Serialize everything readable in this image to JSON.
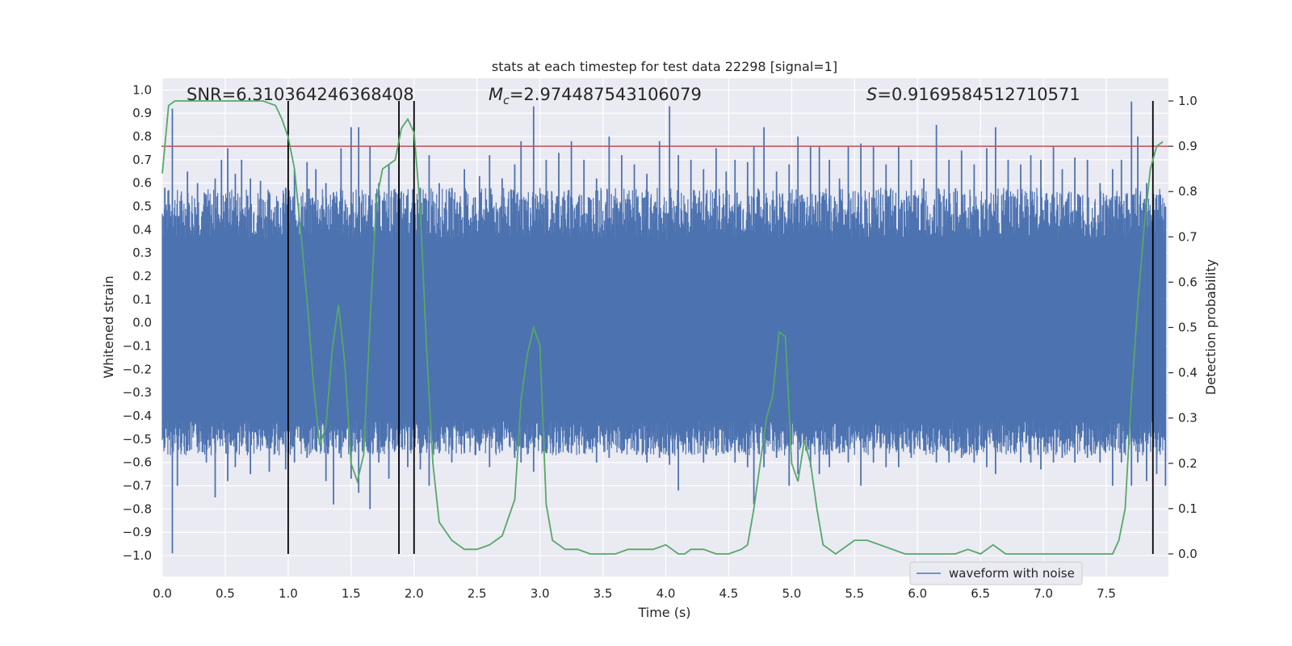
{
  "chart_data": {
    "type": "line",
    "title": "stats at each timestep for test data 22298 [signal=1]",
    "xlabel": "Time (s)",
    "ylabel": "Whitened strain",
    "ylabel_right": "Detection probability",
    "xlim": [
      0.0,
      8.0
    ],
    "ylim": [
      -1.09,
      1.05
    ],
    "ylim_right": [
      -0.05,
      1.05
    ],
    "xticks": [
      "0.0",
      "0.5",
      "1.0",
      "1.5",
      "2.0",
      "2.5",
      "3.0",
      "3.5",
      "4.0",
      "4.5",
      "5.0",
      "5.5",
      "6.0",
      "6.5",
      "7.0",
      "7.5"
    ],
    "yticks_left": [
      "1.0",
      "0.9",
      "0.8",
      "0.7",
      "0.6",
      "0.5",
      "0.4",
      "0.3",
      "0.2",
      "0.1",
      "0.0",
      "−0.1",
      "−0.2",
      "−0.3",
      "−0.4",
      "−0.5",
      "−0.6",
      "−0.7",
      "−0.8",
      "−0.9",
      "−1.0"
    ],
    "yticks_right": [
      "1.0",
      "0.9",
      "0.8",
      "0.7",
      "0.6",
      "0.5",
      "0.4",
      "0.3",
      "0.2",
      "0.1",
      "0.0"
    ],
    "annotations": {
      "snr": "SNR=6.310364246368408",
      "mc": "=2.974487543106079",
      "mc_symbol": "M",
      "mc_sub": "c",
      "s": "=0.9169584512710571",
      "s_symbol": "S"
    },
    "legend": {
      "label": "waveform with noise",
      "location": "lower-right"
    },
    "threshold_line": {
      "y_right": 0.9,
      "color": "#c44e52"
    },
    "vertical_lines_x": [
      1.0,
      1.88,
      2.0,
      7.87
    ],
    "colors": {
      "waveform": "#4c72b0",
      "probability": "#55a868",
      "threshold": "#c44e52",
      "vlines": "#000000",
      "background": "#eaeaf2",
      "grid": "#ffffff"
    },
    "waveform_series": {
      "name": "waveform with noise",
      "spikes": [
        [
          0.02,
          0.58,
          -0.52
        ],
        [
          0.08,
          0.92,
          -0.99
        ],
        [
          0.12,
          0.4,
          -0.7
        ],
        [
          0.2,
          0.65,
          -0.55
        ],
        [
          0.28,
          0.6,
          -0.48
        ],
        [
          0.35,
          0.55,
          -0.6
        ],
        [
          0.42,
          0.62,
          -0.75
        ],
        [
          0.47,
          0.7,
          -0.5
        ],
        [
          0.52,
          0.75,
          -0.68
        ],
        [
          0.58,
          0.64,
          -0.62
        ],
        [
          0.63,
          0.7,
          -0.53
        ],
        [
          0.7,
          0.62,
          -0.65
        ],
        [
          0.78,
          0.61,
          -0.48
        ],
        [
          0.85,
          0.55,
          -0.64
        ],
        [
          0.92,
          0.52,
          -0.5
        ],
        [
          0.98,
          0.58,
          -0.63
        ],
        [
          1.05,
          0.66,
          -0.6
        ],
        [
          1.15,
          0.69,
          -0.58
        ],
        [
          1.22,
          0.66,
          -0.55
        ],
        [
          1.3,
          0.6,
          -0.68
        ],
        [
          1.36,
          0.56,
          -0.78
        ],
        [
          1.42,
          0.75,
          -0.58
        ],
        [
          1.5,
          0.84,
          -0.67
        ],
        [
          1.56,
          0.84,
          -0.73
        ],
        [
          1.65,
          0.76,
          -0.8
        ],
        [
          1.72,
          0.6,
          -0.6
        ],
        [
          1.8,
          0.68,
          -0.67
        ],
        [
          1.88,
          0.68,
          -0.69
        ],
        [
          1.95,
          0.55,
          -0.62
        ],
        [
          2.05,
          0.58,
          -0.63
        ],
        [
          2.12,
          0.72,
          -0.7
        ],
        [
          2.2,
          0.6,
          -0.56
        ],
        [
          2.3,
          0.58,
          -0.6
        ],
        [
          2.4,
          0.66,
          -0.56
        ],
        [
          2.52,
          0.63,
          -0.55
        ],
        [
          2.6,
          0.72,
          -0.62
        ],
        [
          2.7,
          0.62,
          -0.55
        ],
        [
          2.8,
          0.68,
          -0.58
        ],
        [
          2.85,
          0.78,
          -0.6
        ],
        [
          2.95,
          0.93,
          -0.64
        ],
        [
          3.05,
          0.7,
          -0.56
        ],
        [
          3.15,
          0.73,
          -0.56
        ],
        [
          3.25,
          0.78,
          -0.56
        ],
        [
          3.35,
          0.7,
          -0.56
        ],
        [
          3.45,
          0.62,
          -0.6
        ],
        [
          3.55,
          0.8,
          -0.58
        ],
        [
          3.65,
          0.72,
          -0.56
        ],
        [
          3.75,
          0.68,
          -0.55
        ],
        [
          3.85,
          0.64,
          -0.6
        ],
        [
          3.95,
          0.78,
          -0.58
        ],
        [
          4.03,
          0.93,
          -0.61
        ],
        [
          4.1,
          0.72,
          -0.72
        ],
        [
          4.2,
          0.7,
          -0.56
        ],
        [
          4.3,
          0.66,
          -0.6
        ],
        [
          4.4,
          0.75,
          -0.57
        ],
        [
          4.48,
          0.65,
          -0.55
        ],
        [
          4.55,
          0.7,
          -0.6
        ],
        [
          4.65,
          0.69,
          -0.62
        ],
        [
          4.7,
          0.76,
          -0.78
        ],
        [
          4.78,
          0.84,
          -0.62
        ],
        [
          4.88,
          0.65,
          -0.58
        ],
        [
          4.98,
          0.68,
          -0.7
        ],
        [
          5.05,
          0.8,
          -0.65
        ],
        [
          5.15,
          0.76,
          -0.62
        ],
        [
          5.22,
          0.76,
          -0.65
        ],
        [
          5.3,
          0.7,
          -0.62
        ],
        [
          5.38,
          0.62,
          -0.56
        ],
        [
          5.45,
          0.76,
          -0.6
        ],
        [
          5.55,
          0.77,
          -0.7
        ],
        [
          5.65,
          0.76,
          -0.6
        ],
        [
          5.75,
          0.68,
          -0.62
        ],
        [
          5.85,
          0.76,
          -0.62
        ],
        [
          5.95,
          0.7,
          -0.58
        ],
        [
          6.05,
          0.62,
          -0.55
        ],
        [
          6.15,
          0.85,
          -0.6
        ],
        [
          6.25,
          0.7,
          -0.6
        ],
        [
          6.35,
          0.74,
          -0.58
        ],
        [
          6.45,
          0.68,
          -0.6
        ],
        [
          6.55,
          0.75,
          -0.62
        ],
        [
          6.62,
          0.84,
          -0.65
        ],
        [
          6.72,
          0.7,
          -0.55
        ],
        [
          6.82,
          0.68,
          -0.6
        ],
        [
          6.9,
          0.72,
          -0.6
        ],
        [
          6.98,
          0.7,
          -0.63
        ],
        [
          7.08,
          0.76,
          -0.6
        ],
        [
          7.15,
          0.66,
          -0.58
        ],
        [
          7.25,
          0.71,
          -0.6
        ],
        [
          7.35,
          0.7,
          -0.58
        ],
        [
          7.45,
          0.6,
          -0.6
        ],
        [
          7.55,
          0.66,
          -0.7
        ],
        [
          7.62,
          0.7,
          -0.6
        ],
        [
          7.7,
          0.95,
          -0.7
        ],
        [
          7.75,
          0.8,
          -0.6
        ],
        [
          7.82,
          0.6,
          -0.68
        ],
        [
          7.9,
          0.55,
          -0.65
        ],
        [
          7.97,
          0.5,
          -0.7
        ]
      ]
    },
    "probability_series": {
      "name": "detection probability",
      "x": [
        0.0,
        0.05,
        0.1,
        0.2,
        0.3,
        0.4,
        0.5,
        0.6,
        0.7,
        0.8,
        0.9,
        0.95,
        1.0,
        1.05,
        1.1,
        1.15,
        1.2,
        1.25,
        1.3,
        1.35,
        1.4,
        1.45,
        1.5,
        1.55,
        1.6,
        1.65,
        1.7,
        1.75,
        1.8,
        1.85,
        1.9,
        1.95,
        2.0,
        2.05,
        2.1,
        2.15,
        2.2,
        2.25,
        2.3,
        2.35,
        2.4,
        2.5,
        2.6,
        2.7,
        2.75,
        2.8,
        2.85,
        2.9,
        2.95,
        3.0,
        3.05,
        3.1,
        3.15,
        3.2,
        3.3,
        3.4,
        3.5,
        3.6,
        3.7,
        3.8,
        3.9,
        4.0,
        4.05,
        4.1,
        4.15,
        4.2,
        4.3,
        4.4,
        4.5,
        4.6,
        4.65,
        4.7,
        4.75,
        4.8,
        4.85,
        4.9,
        4.95,
        5.0,
        5.05,
        5.1,
        5.15,
        5.2,
        5.25,
        5.3,
        5.35,
        5.4,
        5.5,
        5.6,
        5.7,
        5.8,
        5.9,
        6.0,
        6.1,
        6.2,
        6.3,
        6.4,
        6.5,
        6.6,
        6.7,
        6.8,
        6.9,
        7.0,
        7.1,
        7.2,
        7.3,
        7.4,
        7.5,
        7.55,
        7.6,
        7.65,
        7.7,
        7.75,
        7.8,
        7.85,
        7.9,
        7.95
      ],
      "y": [
        0.84,
        0.99,
        1.0,
        1.0,
        1.0,
        1.0,
        1.0,
        1.0,
        1.0,
        1.0,
        0.99,
        0.96,
        0.92,
        0.85,
        0.71,
        0.56,
        0.38,
        0.24,
        0.28,
        0.45,
        0.55,
        0.42,
        0.2,
        0.16,
        0.22,
        0.51,
        0.78,
        0.85,
        0.86,
        0.87,
        0.94,
        0.96,
        0.93,
        0.76,
        0.45,
        0.2,
        0.07,
        0.05,
        0.03,
        0.02,
        0.01,
        0.01,
        0.02,
        0.04,
        0.08,
        0.12,
        0.34,
        0.44,
        0.5,
        0.46,
        0.11,
        0.03,
        0.02,
        0.01,
        0.01,
        0.0,
        0.0,
        0.0,
        0.01,
        0.01,
        0.01,
        0.02,
        0.01,
        0.0,
        0.0,
        0.01,
        0.01,
        0.0,
        0.0,
        0.01,
        0.02,
        0.1,
        0.2,
        0.3,
        0.35,
        0.49,
        0.48,
        0.2,
        0.16,
        0.25,
        0.2,
        0.1,
        0.02,
        0.01,
        0.0,
        0.01,
        0.03,
        0.03,
        0.02,
        0.01,
        0.0,
        0.0,
        0.0,
        0.0,
        0.0,
        0.01,
        0.0,
        0.02,
        0.0,
        0.0,
        0.0,
        0.0,
        0.0,
        0.0,
        0.0,
        0.0,
        0.0,
        0.0,
        0.03,
        0.1,
        0.35,
        0.55,
        0.72,
        0.85,
        0.9,
        0.91
      ]
    }
  }
}
